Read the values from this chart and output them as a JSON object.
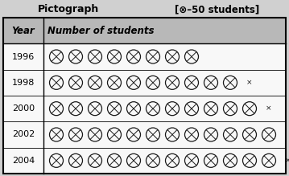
{
  "title": "Pictograph",
  "legend_text": "[⊗–50 students]",
  "header_year": "Year",
  "header_students": "Number of students",
  "rows": [
    {
      "year": "1996",
      "full": 8,
      "half": false
    },
    {
      "year": "1998",
      "full": 10,
      "half": true
    },
    {
      "year": "2000",
      "full": 11,
      "half": true
    },
    {
      "year": "2002",
      "full": 12,
      "half": false
    },
    {
      "year": "2004",
      "full": 12,
      "half": true
    }
  ],
  "bg_color": "#d0d0d0",
  "header_bg": "#b8b8b8",
  "cell_bg": "#f8f8f8",
  "border_color": "#000000",
  "symbol_color": "#1a1a1a",
  "title_fontsize": 9,
  "legend_fontsize": 8.5,
  "year_fontsize": 8,
  "header_fontsize": 8.5,
  "sym_fontsize": 6.5,
  "fig_width": 3.59,
  "fig_height": 2.19
}
